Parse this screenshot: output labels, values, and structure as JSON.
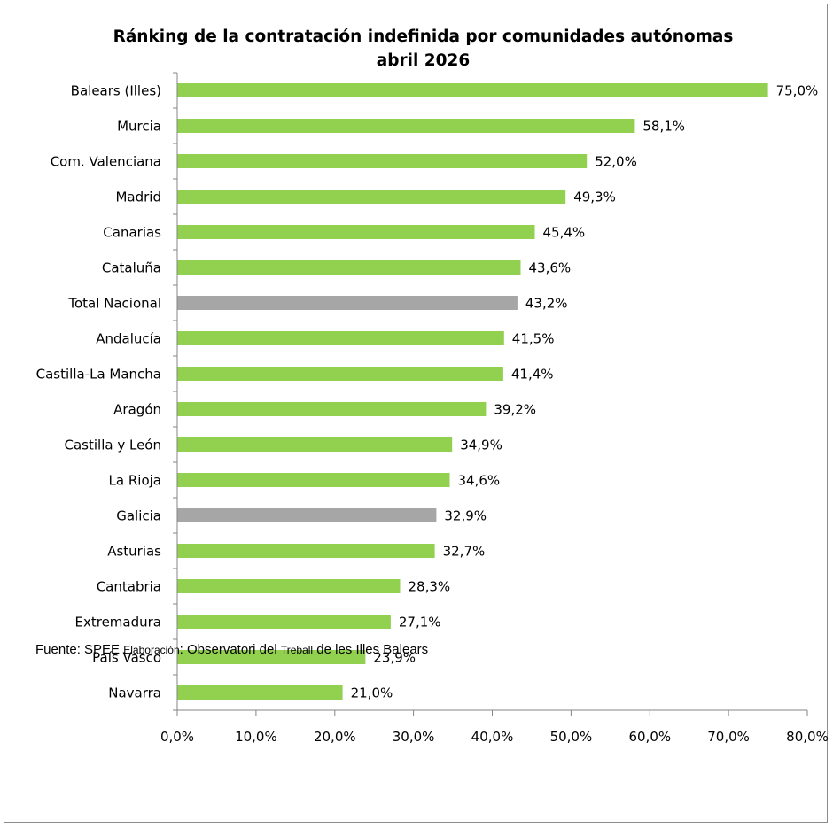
{
  "chart_data": {
    "type": "bar",
    "orientation": "horizontal",
    "title": "Ránking de la contratación indefinida por comunidades autónomas",
    "subtitle": "abril 2026",
    "categories": [
      "Balears (Illes)",
      "Murcia",
      "Com. Valenciana",
      "Madrid",
      "Canarias",
      "Cataluña",
      "Total Nacional",
      "Andalucía",
      "Castilla-La Mancha",
      "Aragón",
      "Castilla y León",
      "La Rioja",
      "Galicia",
      "Asturias",
      "Cantabria",
      "Extremadura",
      "País Vasco",
      "Navarra"
    ],
    "values": [
      75.0,
      58.1,
      52.0,
      49.3,
      45.4,
      43.6,
      43.2,
      41.5,
      41.4,
      39.2,
      34.9,
      34.6,
      32.9,
      32.7,
      28.3,
      27.1,
      23.9,
      21.0
    ],
    "value_labels": [
      "75,0%",
      "58,1%",
      "52,0%",
      "49,3%",
      "45,4%",
      "43,6%",
      "43,2%",
      "41,5%",
      "41,4%",
      "39,2%",
      "34,9%",
      "34,6%",
      "32,9%",
      "32,7%",
      "28,3%",
      "27,1%",
      "23,9%",
      "21,0%"
    ],
    "bar_colors": [
      "#92d050",
      "#92d050",
      "#92d050",
      "#92d050",
      "#92d050",
      "#92d050",
      "#a6a6a6",
      "#92d050",
      "#92d050",
      "#92d050",
      "#92d050",
      "#92d050",
      "#a6a6a6",
      "#92d050",
      "#92d050",
      "#92d050",
      "#92d050",
      "#92d050"
    ],
    "xlim": [
      0,
      80
    ],
    "xticks": [
      0,
      10,
      20,
      30,
      40,
      50,
      60,
      70,
      80
    ],
    "xtick_labels": [
      "0,0%",
      "10,0%",
      "20,0%",
      "30,0%",
      "40,0%",
      "50,0%",
      "60,0%",
      "70,0%",
      "80,0%"
    ],
    "xlabel": "",
    "ylabel": "",
    "grid": false,
    "legend": "none"
  },
  "source": {
    "fuente_label": "Fuente",
    "fuente_value": "SPEE",
    "elab_label": "Elaboración",
    "elab_part1": "Observatori del",
    "elab_part2": "Treball",
    "elab_part3": "de les Illes Balears"
  }
}
